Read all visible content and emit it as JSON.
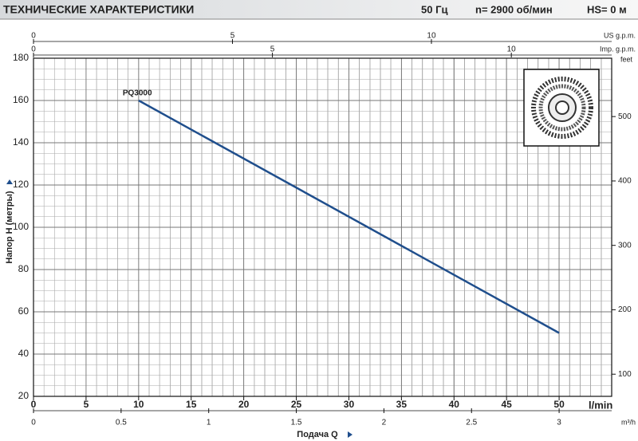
{
  "chart_data": {
    "type": "line",
    "title": "ТЕХНИЧЕСКИЕ ХАРАКТЕРИСТИКИ",
    "specs": [
      "50 Гц",
      "n= 2900 об/мин",
      "HS= 0 м"
    ],
    "xlabel": "Подача Q",
    "ylabel": "Напор H (метры)",
    "xunit": "l/min",
    "xlim": [
      0,
      55
    ],
    "xticks": [
      0,
      5,
      10,
      15,
      20,
      25,
      30,
      35,
      40,
      45,
      50
    ],
    "ylim": [
      20,
      180
    ],
    "yticks": [
      20,
      40,
      60,
      80,
      100,
      120,
      140,
      160,
      180
    ],
    "grid": true,
    "secondary_x": [
      {
        "label": "m³/h",
        "position": "bottom",
        "lim": [
          0,
          3.3
        ],
        "ticks": [
          0,
          0.5,
          1,
          1.5,
          2,
          2.5,
          3
        ]
      },
      {
        "label": "US g.p.m.",
        "position": "top",
        "lim": [
          0,
          14.53
        ],
        "ticks": [
          0,
          5,
          10
        ]
      },
      {
        "label": "Imp. g.p.m.",
        "position": "top",
        "lim": [
          0,
          12.1
        ],
        "ticks": [
          0,
          5,
          10
        ]
      }
    ],
    "y2label": "feet",
    "y2lim": [
      65.6,
      590.6
    ],
    "y2ticks": [
      100,
      200,
      300,
      400,
      500
    ],
    "series": [
      {
        "name": "PQ3000",
        "color": "#1f4e8c",
        "x": [
          10,
          50
        ],
        "values": [
          160,
          50
        ]
      }
    ]
  }
}
